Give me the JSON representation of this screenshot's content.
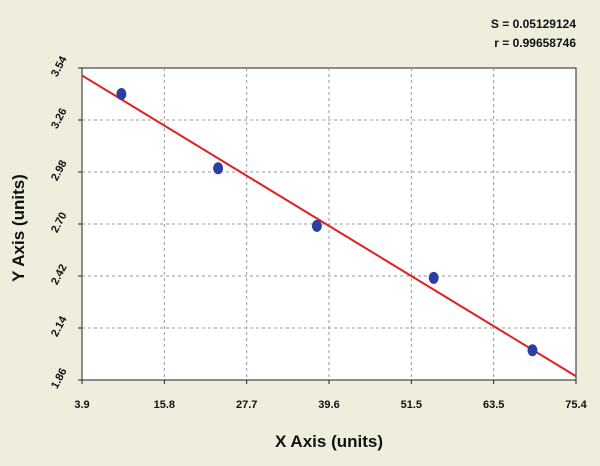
{
  "chart_data": {
    "type": "scatter",
    "title": "",
    "xlabel": "X Axis (units)",
    "ylabel": "Y Axis (units)",
    "xlim": [
      3.9,
      75.4
    ],
    "ylim": [
      1.86,
      3.54
    ],
    "xticks": [
      "3.9",
      "15.8",
      "27.7",
      "39.6",
      "51.5",
      "63.5",
      "75.4"
    ],
    "yticks": [
      "1.86",
      "2.14",
      "2.42",
      "2.70",
      "2.98",
      "3.26",
      "3.54"
    ],
    "grid": true,
    "stats": {
      "s_label": "S = 0.05129124",
      "r_label": "r = 0.99658746"
    },
    "points": [
      {
        "x": 9.6,
        "y": 3.4
      },
      {
        "x": 23.6,
        "y": 3.0
      },
      {
        "x": 37.9,
        "y": 2.69
      },
      {
        "x": 54.8,
        "y": 2.41
      },
      {
        "x": 69.1,
        "y": 2.02
      }
    ],
    "fit_line": {
      "x": [
        3.9,
        75.4
      ],
      "y": [
        3.5,
        1.88
      ]
    },
    "colors": {
      "points": "#2b3fa0",
      "fit_line": "#e02020",
      "grid": "#999999",
      "plot_bg": "#ffffff"
    }
  }
}
